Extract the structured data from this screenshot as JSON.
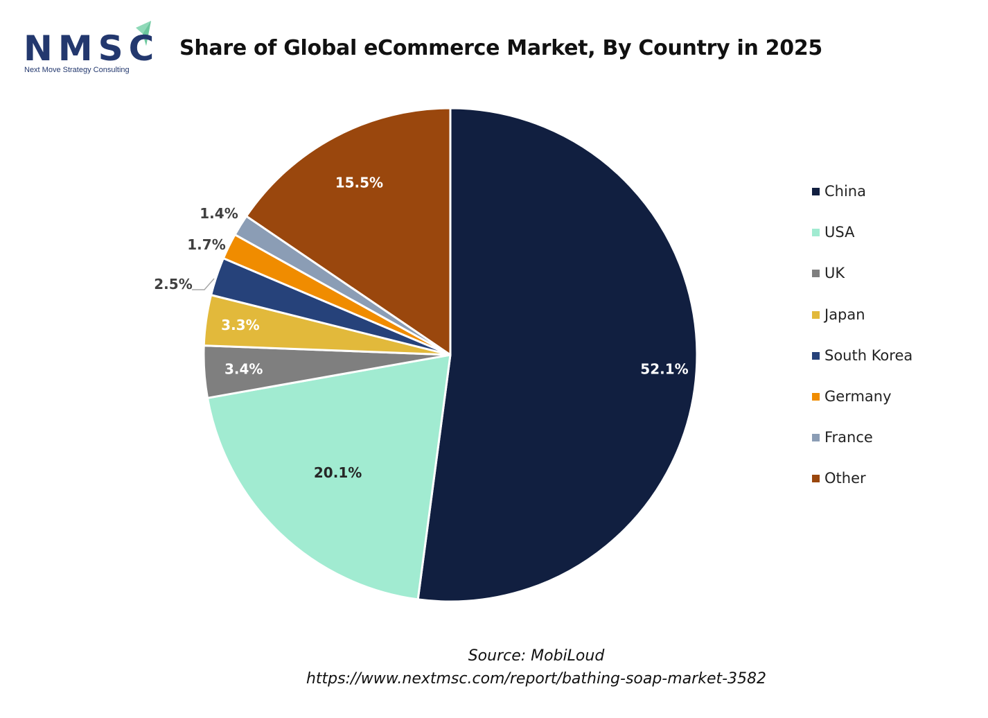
{
  "logo": {
    "text": "NMSC",
    "subtitle": "Next Move Strategy Consulting"
  },
  "colors": {
    "logo_blue": "#23386e",
    "logo_green": "#8fd9b8"
  },
  "chart_data": {
    "type": "pie",
    "title": "Share of Global eCommerce Market, By Country in 2025",
    "legend_position": "right",
    "slices": [
      {
        "name": "China",
        "value": 52.1,
        "label": "52.1%",
        "color": "#111f40"
      },
      {
        "name": "USA",
        "value": 20.1,
        "label": "20.1%",
        "color": "#a1ebd1"
      },
      {
        "name": "UK",
        "value": 3.4,
        "label": "3.4%",
        "color": "#7f7f7f"
      },
      {
        "name": "Japan",
        "value": 3.3,
        "label": "3.3%",
        "color": "#e2b93b"
      },
      {
        "name": "South Korea",
        "value": 2.5,
        "label": "2.5%",
        "color": "#26427a"
      },
      {
        "name": "Germany",
        "value": 1.7,
        "label": "1.7%",
        "color": "#f08c00"
      },
      {
        "name": "France",
        "value": 1.4,
        "label": "1.4%",
        "color": "#8b9db5"
      },
      {
        "name": "Other",
        "value": 15.5,
        "label": "15.5%",
        "color": "#9a470d"
      }
    ]
  },
  "source": {
    "line1": "Source: MobiLoud",
    "line2": "https://www.nextmsc.com/report/bathing-soap-market-3582"
  }
}
